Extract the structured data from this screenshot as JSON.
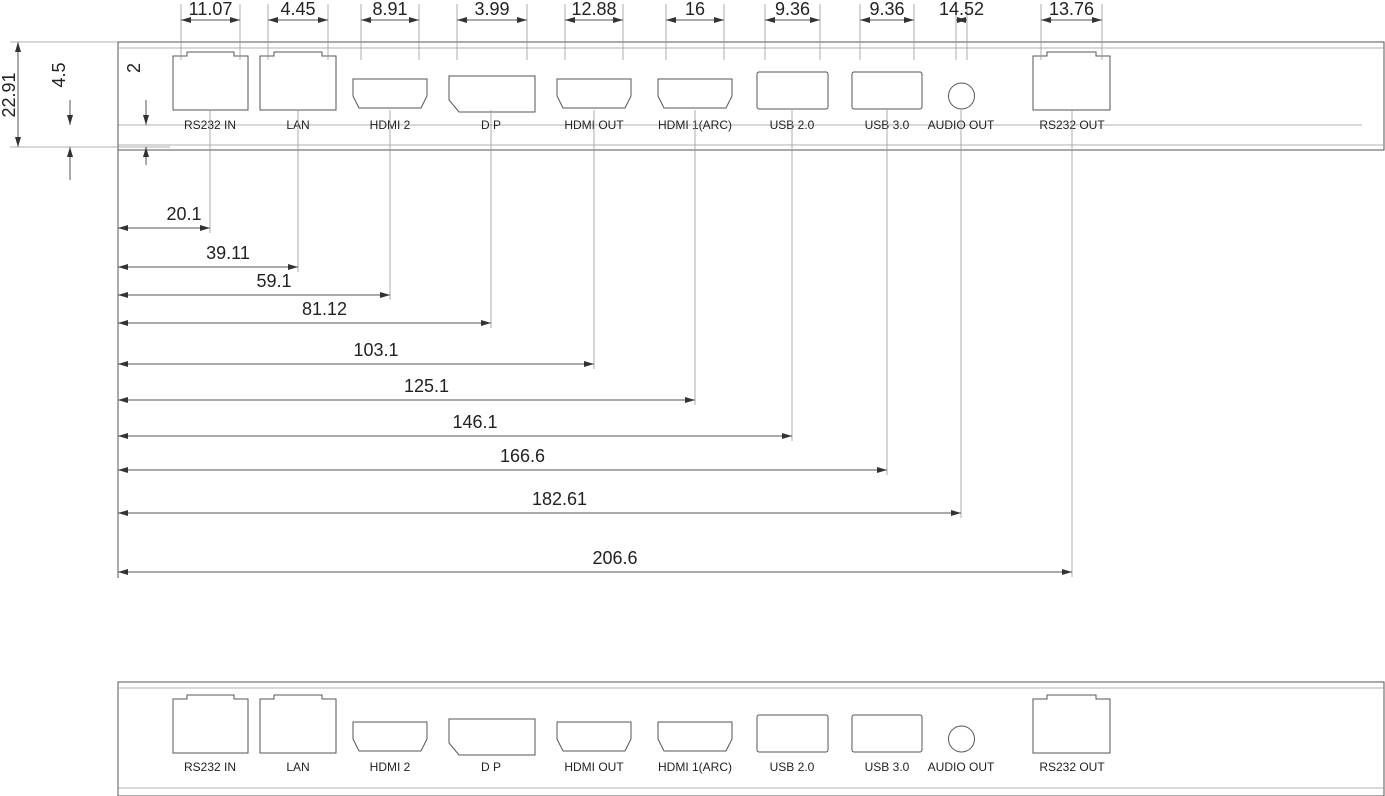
{
  "top_widths": [
    "11.07",
    "4.45",
    "8.91",
    "3.99",
    "12.88",
    "16",
    "9.36",
    "9.36",
    "14.52",
    "13.76"
  ],
  "side_dims": [
    "22.91",
    "4.5",
    "2"
  ],
  "offsets": [
    "20.1",
    "39.11",
    "59.1",
    "81.12",
    "103.1",
    "125.1",
    "146.1",
    "166.6",
    "182.61",
    "206.6"
  ],
  "ports": [
    "RS232 IN",
    "LAN",
    "HDMI 2",
    "D P",
    "HDMI OUT",
    "HDMI 1(ARC)",
    "USB 2.0",
    "USB 3.0",
    "AUDIO OUT",
    "RS232 OUT"
  ]
}
